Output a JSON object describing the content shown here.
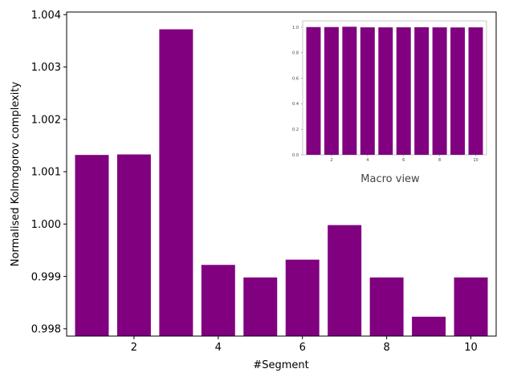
{
  "chart_data": [
    {
      "type": "bar",
      "role": "main",
      "categories": [
        1,
        2,
        3,
        4,
        5,
        6,
        7,
        8,
        9,
        10
      ],
      "values": [
        1.00132,
        1.00133,
        1.00372,
        0.99922,
        0.99898,
        0.99932,
        0.99998,
        0.99898,
        0.99823,
        0.99898
      ],
      "xlabel": "#Segment",
      "ylabel": "Normalised Kolmogorov complexity",
      "xlim": [
        0.4,
        10.6
      ],
      "ylim": [
        0.99786,
        1.00405
      ],
      "xticks": [
        2,
        4,
        6,
        8,
        10
      ],
      "yticks": [
        0.998,
        0.999,
        1.0,
        1.001,
        1.002,
        1.003,
        1.004
      ],
      "ytick_labels": [
        "0.998",
        "0.999",
        "1.000",
        "1.001",
        "1.002",
        "1.003",
        "1.004"
      ],
      "bar_color": "#800080",
      "grid": false
    },
    {
      "type": "bar",
      "role": "inset",
      "title": "Macro view",
      "categories": [
        1,
        2,
        3,
        4,
        5,
        6,
        7,
        8,
        9,
        10
      ],
      "values": [
        1.0013,
        1.0013,
        1.0037,
        0.9992,
        0.999,
        0.9993,
        1.0,
        0.999,
        0.9982,
        0.999
      ],
      "xlim": [
        0.4,
        10.6
      ],
      "ylim": [
        0,
        1.05
      ],
      "xticks": [
        2,
        4,
        6,
        8,
        10
      ],
      "yticks": [
        0.0,
        0.2,
        0.4,
        0.6,
        0.8,
        1.0
      ],
      "ytick_labels": [
        "0.0",
        "0.2",
        "0.4",
        "0.6",
        "0.8",
        "1.0"
      ],
      "bar_color": "#800080",
      "grid": false
    }
  ]
}
